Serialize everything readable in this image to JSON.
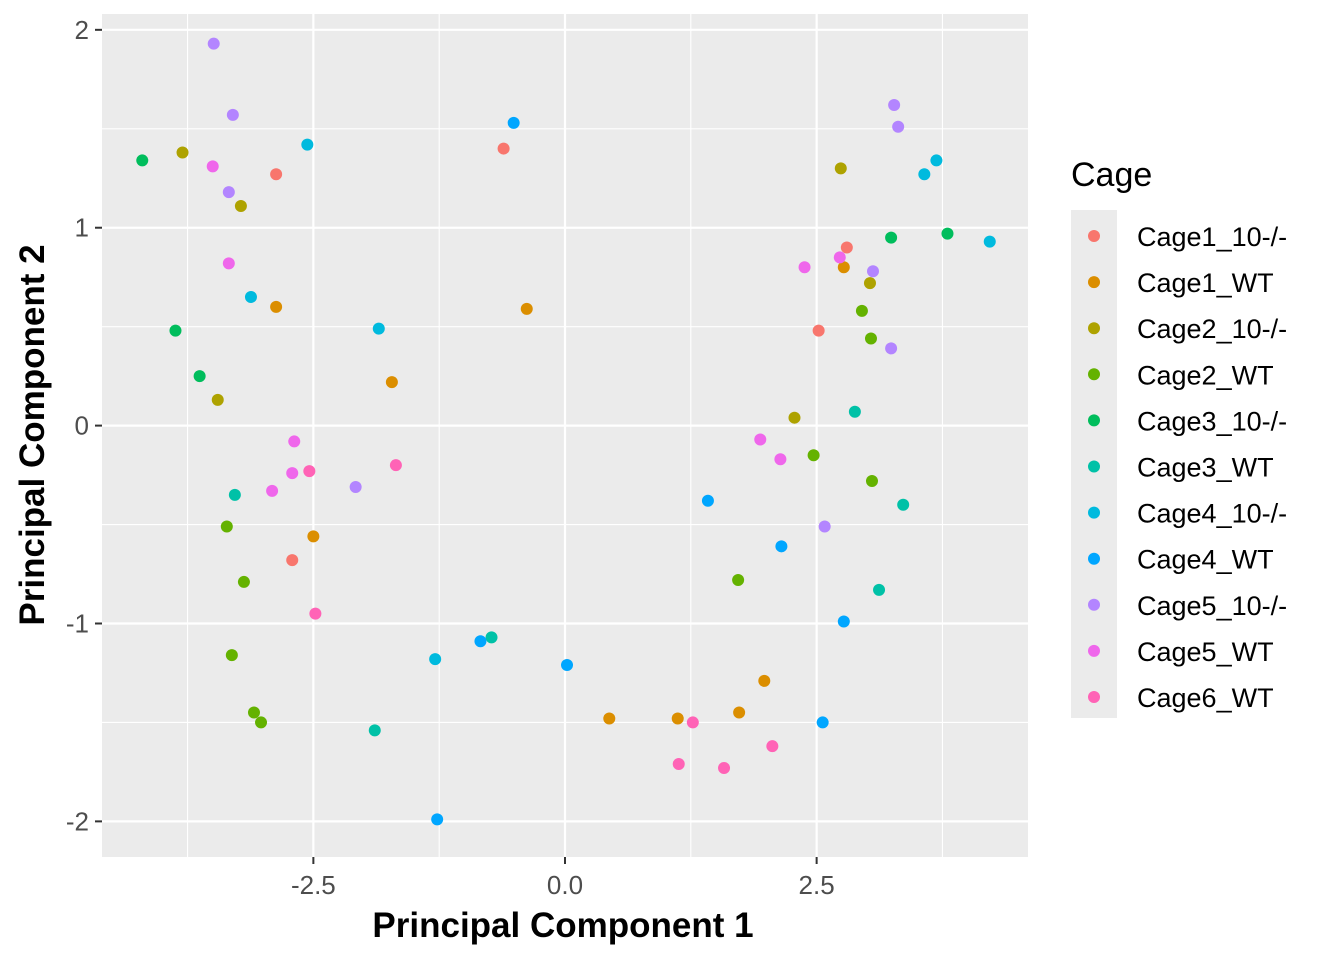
{
  "chart_data": {
    "type": "scatter",
    "xlabel": "Principal Component 1",
    "ylabel": "Principal Component 2",
    "xlim": [
      -4.6,
      4.6
    ],
    "ylim": [
      -2.18,
      2.08
    ],
    "x_ticks": [
      -2.5,
      0,
      2.5
    ],
    "x_tick_labels": [
      "-2.5",
      "0.0",
      "2.5"
    ],
    "y_ticks": [
      -2,
      -1,
      0,
      1,
      2
    ],
    "y_tick_labels": [
      "-2",
      "-1",
      "0",
      "1",
      "2"
    ],
    "grid": true,
    "legend": {
      "title": "Cage",
      "position": "right"
    },
    "series": [
      {
        "name": "Cage1_10-/-",
        "color": "#F8766D",
        "points": [
          [
            -2.87,
            1.27
          ],
          [
            -0.61,
            1.4
          ],
          [
            2.8,
            0.9
          ],
          [
            2.52,
            0.48
          ],
          [
            -2.71,
            -0.68
          ]
        ]
      },
      {
        "name": "Cage1_WT",
        "color": "#DB8E00",
        "points": [
          [
            -2.87,
            0.6
          ],
          [
            -0.38,
            0.59
          ],
          [
            -1.72,
            0.22
          ],
          [
            2.77,
            0.8
          ],
          [
            -2.5,
            -0.56
          ],
          [
            0.44,
            -1.48
          ],
          [
            1.12,
            -1.48
          ],
          [
            1.73,
            -1.45
          ],
          [
            1.98,
            -1.29
          ]
        ]
      },
      {
        "name": "Cage2_10-/-",
        "color": "#AEA200",
        "points": [
          [
            -3.8,
            1.38
          ],
          [
            -3.22,
            1.11
          ],
          [
            2.74,
            1.3
          ],
          [
            3.03,
            0.72
          ],
          [
            -3.45,
            0.13
          ],
          [
            2.28,
            0.04
          ]
        ]
      },
      {
        "name": "Cage2_WT",
        "color": "#64B200",
        "points": [
          [
            2.95,
            0.58
          ],
          [
            3.04,
            0.44
          ],
          [
            2.47,
            -0.15
          ],
          [
            3.05,
            -0.28
          ],
          [
            -3.36,
            -0.51
          ],
          [
            1.72,
            -0.78
          ],
          [
            -3.19,
            -0.79
          ],
          [
            -3.31,
            -1.16
          ],
          [
            -3.09,
            -1.45
          ],
          [
            -3.02,
            -1.5
          ]
        ]
      },
      {
        "name": "Cage3_10-/-",
        "color": "#00BD5C",
        "points": [
          [
            -4.2,
            1.34
          ],
          [
            3.24,
            0.95
          ],
          [
            3.8,
            0.97
          ],
          [
            -3.87,
            0.48
          ],
          [
            -3.63,
            0.25
          ]
        ]
      },
      {
        "name": "Cage3_WT",
        "color": "#00C1A7",
        "points": [
          [
            2.88,
            0.07
          ],
          [
            3.36,
            -0.4
          ],
          [
            -3.28,
            -0.35
          ],
          [
            3.12,
            -0.83
          ],
          [
            -0.73,
            -1.07
          ],
          [
            -1.89,
            -1.54
          ]
        ]
      },
      {
        "name": "Cage4_10-/-",
        "color": "#00BADE",
        "points": [
          [
            -2.56,
            1.42
          ],
          [
            3.69,
            1.34
          ],
          [
            3.57,
            1.27
          ],
          [
            4.22,
            0.93
          ],
          [
            -3.12,
            0.65
          ],
          [
            -1.85,
            0.49
          ],
          [
            -1.29,
            -1.18
          ]
        ]
      },
      {
        "name": "Cage4_WT",
        "color": "#00A6FF",
        "points": [
          [
            -0.51,
            1.53
          ],
          [
            1.42,
            -0.38
          ],
          [
            2.15,
            -0.61
          ],
          [
            2.77,
            -0.99
          ],
          [
            -0.84,
            -1.09
          ],
          [
            0.02,
            -1.21
          ],
          [
            2.56,
            -1.5
          ],
          [
            -1.27,
            -1.99
          ]
        ]
      },
      {
        "name": "Cage5_10-/-",
        "color": "#B385FF",
        "points": [
          [
            -3.49,
            1.93
          ],
          [
            -3.3,
            1.57
          ],
          [
            3.27,
            1.62
          ],
          [
            3.31,
            1.51
          ],
          [
            -3.34,
            1.18
          ],
          [
            3.06,
            0.78
          ],
          [
            3.24,
            0.39
          ],
          [
            -2.08,
            -0.31
          ],
          [
            2.58,
            -0.51
          ]
        ]
      },
      {
        "name": "Cage5_WT",
        "color": "#EF67EB",
        "points": [
          [
            -3.5,
            1.31
          ],
          [
            -3.34,
            0.82
          ],
          [
            2.38,
            0.8
          ],
          [
            2.73,
            0.85
          ],
          [
            -2.69,
            -0.08
          ],
          [
            1.94,
            -0.07
          ],
          [
            2.14,
            -0.17
          ],
          [
            -2.71,
            -0.24
          ],
          [
            -2.91,
            -0.33
          ]
        ]
      },
      {
        "name": "Cage6_WT",
        "color": "#FF63B6",
        "points": [
          [
            -2.54,
            -0.23
          ],
          [
            -1.68,
            -0.2
          ],
          [
            -2.48,
            -0.95
          ],
          [
            1.27,
            -1.5
          ],
          [
            2.06,
            -1.62
          ],
          [
            1.13,
            -1.71
          ],
          [
            1.58,
            -1.73
          ]
        ]
      }
    ]
  }
}
